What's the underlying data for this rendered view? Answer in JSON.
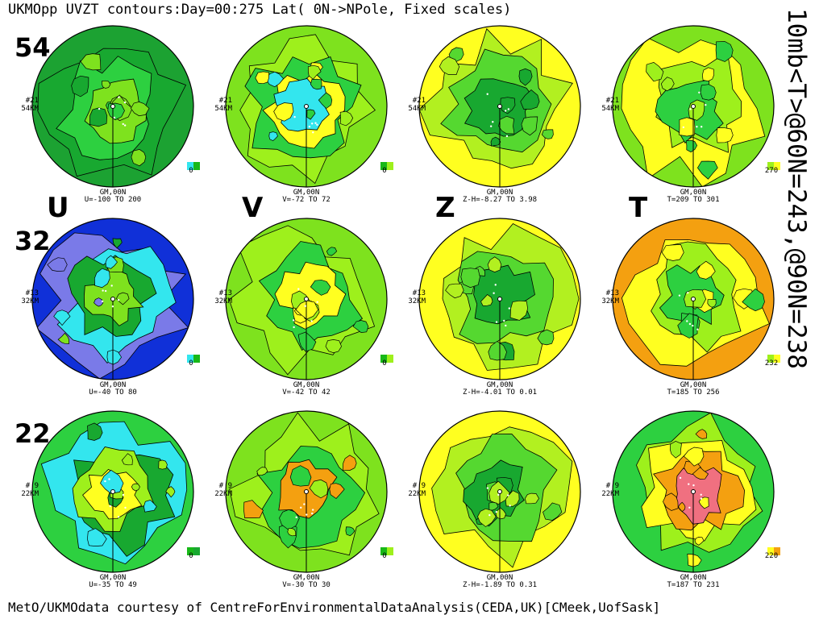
{
  "title": "UKMOpp UVZT contours:Day=00:275 Lat( 0N->NPole, Fixed scales)",
  "side_text": "10mb<T>@60N=243,@90N=238",
  "footer": "MetO/UKMOdata courtesy of CentreForEnvironmentalDataAnalysis(CEDA,UK)[CMeek,UofSask]",
  "altitude_labels": [
    "54",
    "32",
    "22"
  ],
  "variable_labels": [
    "U",
    "V",
    "Z",
    "T"
  ],
  "chart_data": [
    {
      "type": "heatmap",
      "variable": "U",
      "level_no": "#21",
      "height": "54KM",
      "meridian": "GM,00N",
      "range_text": "U=-100 TO 200",
      "min": -100,
      "max": 200,
      "key_value": "0",
      "key_colors": [
        "#33e6ee",
        "#18b818"
      ],
      "palette": [
        "#18a830",
        "#2dd040",
        "#7ee21e"
      ],
      "outer": "#1ca232"
    },
    {
      "type": "heatmap",
      "variable": "V",
      "level_no": "#21",
      "height": "54KM",
      "meridian": "GM,00N",
      "range_text": "V=-72 TO 72",
      "min": -72,
      "max": 72,
      "key_value": "0",
      "key_colors": [
        "#18b818",
        "#9ef01c"
      ],
      "palette": [
        "#9ef01c",
        "#2dd040",
        "#ffff20",
        "#33e6ee"
      ],
      "outer": "#7ee21e"
    },
    {
      "type": "heatmap",
      "variable": "Z",
      "level_no": "#21",
      "height": "54KM",
      "meridian": "GM,00N",
      "range_text": "Z-H=-8.27 TO 3.98",
      "min": -8.27,
      "max": 3.98,
      "key_value": "",
      "key_colors": [],
      "palette": [
        "#b2f020",
        "#55d830",
        "#18a830"
      ],
      "outer": "#ffff20"
    },
    {
      "type": "heatmap",
      "variable": "T",
      "level_no": "#21",
      "height": "54KM",
      "meridian": "GM,00N",
      "range_text": "T=209 TO 301",
      "min": 209,
      "max": 301,
      "key_value": "270",
      "key_colors": [
        "#9ef01c",
        "#ffff20"
      ],
      "palette": [
        "#ffff20",
        "#9ef01c",
        "#2dd040"
      ],
      "outer": "#7ee21e"
    },
    {
      "type": "heatmap",
      "variable": "U",
      "level_no": "#13",
      "height": "32KM",
      "meridian": "GM,00N",
      "range_text": "U=-40 TO 80",
      "min": -40,
      "max": 80,
      "key_value": "0",
      "key_colors": [
        "#33e6ee",
        "#18b818"
      ],
      "palette": [
        "#7a7ae8",
        "#33e6ee",
        "#18a830",
        "#7ee21e"
      ],
      "outer": "#1030d8"
    },
    {
      "type": "heatmap",
      "variable": "V",
      "level_no": "#13",
      "height": "32KM",
      "meridian": "GM,00N",
      "range_text": "V=-42 TO 42",
      "min": -42,
      "max": 42,
      "key_value": "0",
      "key_colors": [
        "#18b818",
        "#9ef01c"
      ],
      "palette": [
        "#9ef01c",
        "#2dd040",
        "#ffff20"
      ],
      "outer": "#7ee21e"
    },
    {
      "type": "heatmap",
      "variable": "Z",
      "level_no": "#13",
      "height": "32KM",
      "meridian": "GM,00N",
      "range_text": "Z-H=-4.01 TO 0.01",
      "min": -4.01,
      "max": 0.01,
      "key_value": "",
      "key_colors": [],
      "palette": [
        "#b2f020",
        "#55d830",
        "#18a830"
      ],
      "outer": "#ffff20"
    },
    {
      "type": "heatmap",
      "variable": "T",
      "level_no": "#13",
      "height": "32KM",
      "meridian": "GM,00N",
      "range_text": "T=185 TO 256",
      "min": 185,
      "max": 256,
      "key_value": "232",
      "key_colors": [
        "#9ef01c",
        "#ffff20"
      ],
      "palette": [
        "#ffff20",
        "#9ef01c",
        "#2dd040"
      ],
      "outer": "#f4a010"
    },
    {
      "type": "heatmap",
      "variable": "U",
      "level_no": "# 9",
      "height": "22KM",
      "meridian": "GM,00N",
      "range_text": "U=-35 TO 49",
      "min": -35,
      "max": 49,
      "key_value": "0",
      "key_colors": [
        "#18b818",
        "#18a830"
      ],
      "palette": [
        "#33e6ee",
        "#18a830",
        "#9ef01c",
        "#ffff20"
      ],
      "outer": "#2dd040"
    },
    {
      "type": "heatmap",
      "variable": "V",
      "level_no": "# 9",
      "height": "22KM",
      "meridian": "GM,00N",
      "range_text": "V=-30 TO 30",
      "min": -30,
      "max": 30,
      "key_value": "0",
      "key_colors": [
        "#18b818",
        "#9ef01c"
      ],
      "palette": [
        "#9ef01c",
        "#2dd040",
        "#f4a010"
      ],
      "outer": "#7ee21e"
    },
    {
      "type": "heatmap",
      "variable": "Z",
      "level_no": "# 9",
      "height": "22KM",
      "meridian": "GM,00N",
      "range_text": "Z-H=-1.89 TO 0.31",
      "min": -1.89,
      "max": 0.31,
      "key_value": "",
      "key_colors": [],
      "palette": [
        "#b2f020",
        "#55d830",
        "#18a830"
      ],
      "outer": "#ffff20"
    },
    {
      "type": "heatmap",
      "variable": "T",
      "level_no": "# 9",
      "height": "22KM",
      "meridian": "GM,00N",
      "range_text": "T=187 TO 231",
      "min": 187,
      "max": 231,
      "key_value": "220",
      "key_colors": [
        "#ffff20",
        "#f4a010"
      ],
      "palette": [
        "#9ef01c",
        "#ffff20",
        "#f4a010",
        "#f07080"
      ],
      "outer": "#2dd040"
    }
  ]
}
